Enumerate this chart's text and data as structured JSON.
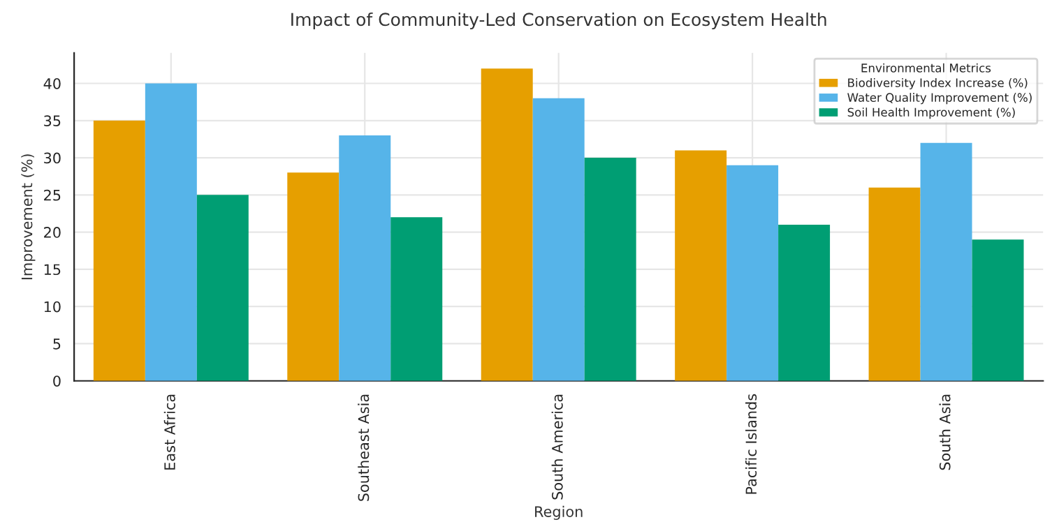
{
  "chart_data": {
    "type": "bar",
    "title": "Impact of Community-Led Conservation on Ecosystem Health",
    "xlabel": "Region",
    "ylabel": "Improvement (%)",
    "legend_title": "Environmental Metrics",
    "categories": [
      "East Africa",
      "Southeast Asia",
      "South America",
      "Pacific Islands",
      "South Asia"
    ],
    "series": [
      {
        "name": "Biodiversity Index Increase (%)",
        "color": "#e69f00",
        "values": [
          35,
          28,
          42,
          31,
          26
        ]
      },
      {
        "name": "Water Quality Improvement (%)",
        "color": "#56b4e9",
        "values": [
          40,
          33,
          38,
          29,
          32
        ]
      },
      {
        "name": "Soil Health Improvement (%)",
        "color": "#009e73",
        "values": [
          25,
          22,
          30,
          21,
          19
        ]
      }
    ],
    "ylim": [
      0,
      44.1
    ],
    "yticks": [
      0,
      5,
      10,
      15,
      20,
      25,
      30,
      35,
      40
    ],
    "grid": true,
    "legend": "top right"
  }
}
